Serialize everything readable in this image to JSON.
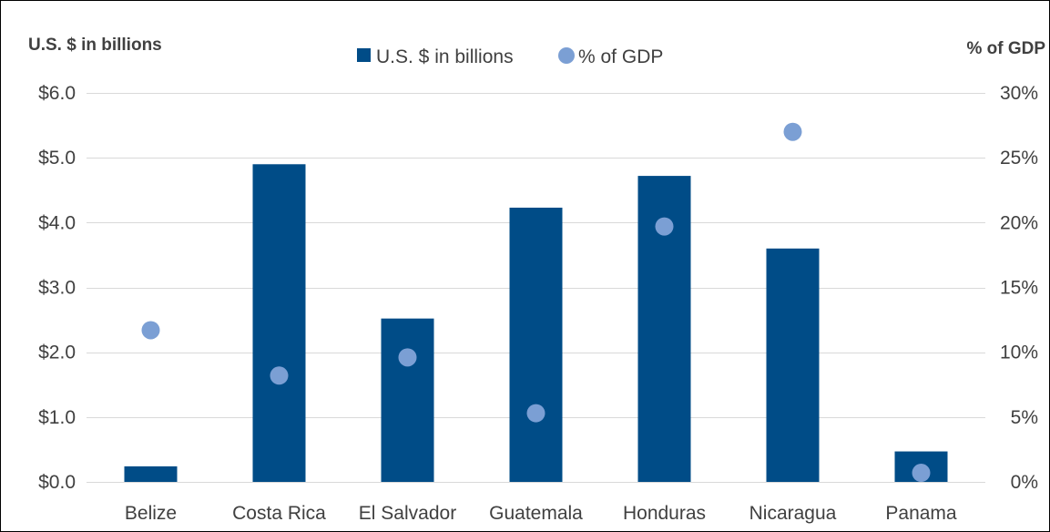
{
  "chart_data": {
    "type": "bar",
    "categories": [
      "Belize",
      "Costa Rica",
      "El Salvador",
      "Guatemala",
      "Honduras",
      "Nicaragua",
      "Panama"
    ],
    "series": [
      {
        "name": "U.S. $ in billions",
        "kind": "bar",
        "axis": "left",
        "color": "#004c87",
        "values": [
          0.24,
          4.9,
          2.52,
          4.23,
          4.72,
          3.6,
          0.47
        ]
      },
      {
        "name": "% of GDP",
        "kind": "scatter",
        "axis": "right",
        "color": "#7b9fd4",
        "values": [
          11.7,
          8.2,
          9.6,
          5.3,
          19.7,
          27.0,
          0.7
        ]
      }
    ],
    "left_axis": {
      "title": "U.S. $ in billions",
      "ylim": [
        0,
        6
      ],
      "ticks": [
        0,
        1,
        2,
        3,
        4,
        5,
        6
      ],
      "tick_labels": [
        "$0.0",
        "$1.0",
        "$2.0",
        "$3.0",
        "$4.0",
        "$5.0",
        "$6.0"
      ]
    },
    "right_axis": {
      "title": "% of GDP",
      "ylim": [
        0,
        30
      ],
      "ticks": [
        0,
        5,
        10,
        15,
        20,
        25,
        30
      ],
      "tick_labels": [
        "0%",
        "5%",
        "10%",
        "15%",
        "20%",
        "25%",
        "30%"
      ]
    },
    "legend": {
      "position": "top-center",
      "entries": [
        "U.S. $ in billions",
        "% of GDP"
      ]
    },
    "grid": true,
    "gridline_color": "#d9d9d9",
    "text_color": "#404040"
  }
}
